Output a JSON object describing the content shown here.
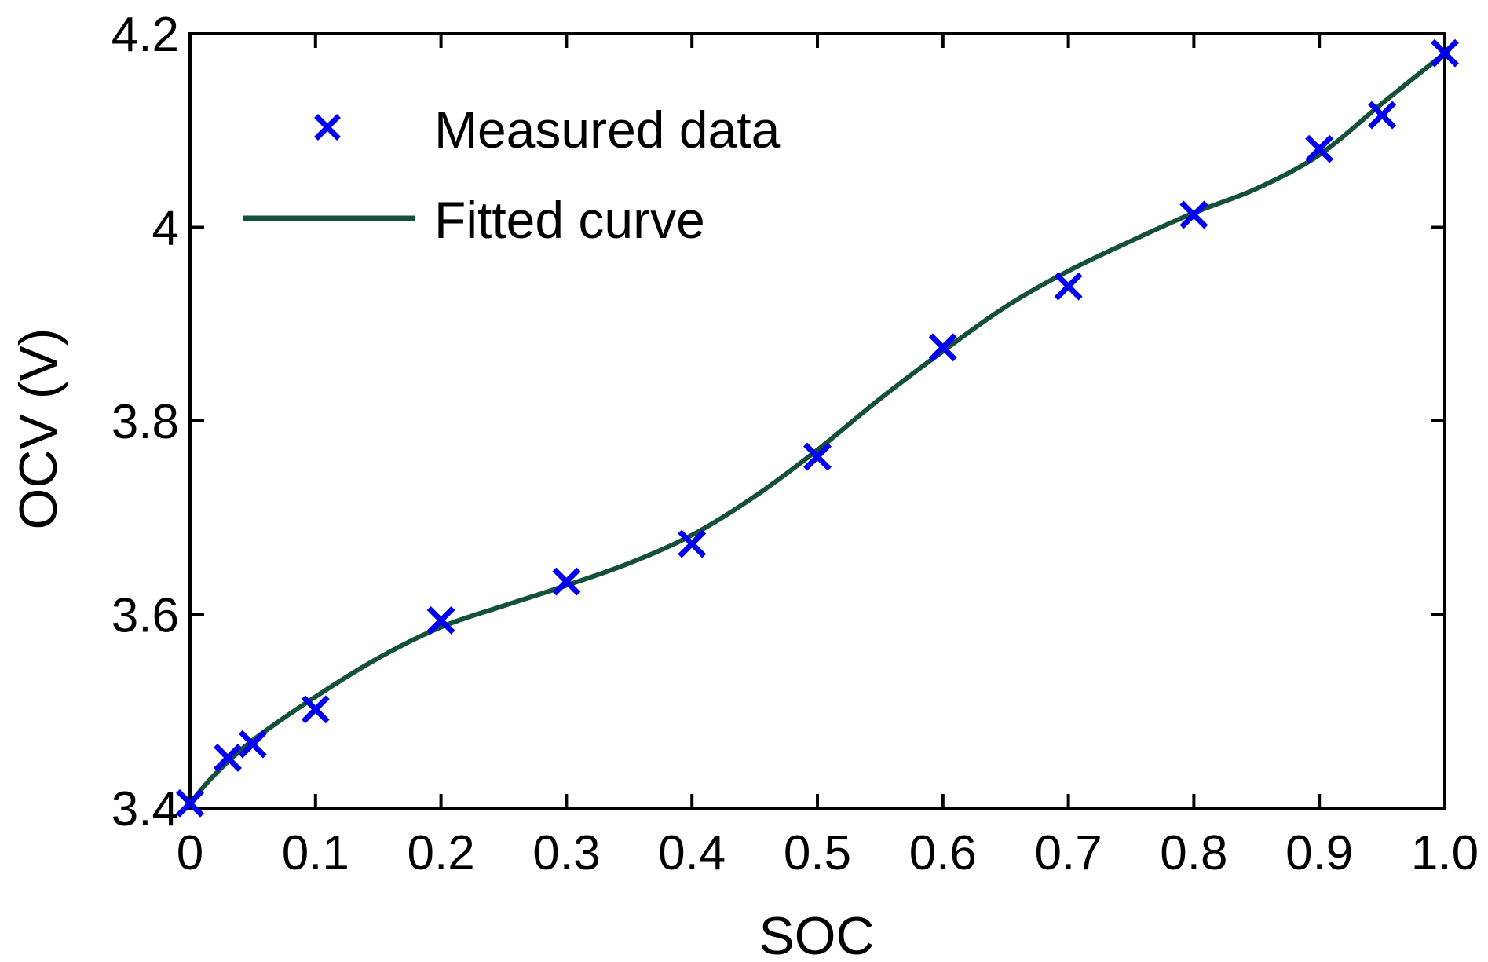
{
  "chart_data": {
    "type": "line",
    "title": "",
    "xlabel": "SOC",
    "ylabel": "OCV (V)",
    "xlim": [
      0,
      1.0
    ],
    "ylim": [
      3.4,
      4.2
    ],
    "x_ticks": [
      0,
      0.1,
      0.2,
      0.3,
      0.4,
      0.5,
      0.6,
      0.7,
      0.8,
      0.9,
      1.0
    ],
    "x_tick_labels": [
      "0",
      "0.1",
      "0.2",
      "0.3",
      "0.4",
      "0.5",
      "0.6",
      "0.7",
      "0.8",
      "0.9",
      "1.0"
    ],
    "y_ticks": [
      3.4,
      3.6,
      3.8,
      4.0,
      4.2
    ],
    "y_tick_labels": [
      "3.4",
      "3.6",
      "3.8",
      "4",
      "4.2"
    ],
    "grid": false,
    "legend_position": "top-left",
    "series": [
      {
        "name": "Measured data",
        "kind": "scatter",
        "marker": "x",
        "color": "#0000ee",
        "x": [
          0,
          0.03,
          0.05,
          0.1,
          0.2,
          0.3,
          0.4,
          0.5,
          0.6,
          0.7,
          0.8,
          0.9,
          0.95,
          1.0
        ],
        "y": [
          3.405,
          3.452,
          3.466,
          3.502,
          3.594,
          3.634,
          3.673,
          3.763,
          3.876,
          3.939,
          4.013,
          4.081,
          4.116,
          4.18
        ]
      },
      {
        "name": "Fitted curve",
        "kind": "line",
        "color": "#14503a",
        "x": [
          0,
          0.02,
          0.05,
          0.1,
          0.15,
          0.2,
          0.25,
          0.3,
          0.35,
          0.4,
          0.45,
          0.5,
          0.55,
          0.6,
          0.65,
          0.7,
          0.75,
          0.8,
          0.85,
          0.9,
          0.95,
          1.0
        ],
        "y": [
          3.405,
          3.435,
          3.47,
          3.515,
          3.555,
          3.587,
          3.609,
          3.63,
          3.653,
          3.682,
          3.722,
          3.77,
          3.823,
          3.872,
          3.918,
          3.955,
          3.986,
          4.015,
          4.04,
          4.075,
          4.128,
          4.18
        ]
      }
    ]
  }
}
